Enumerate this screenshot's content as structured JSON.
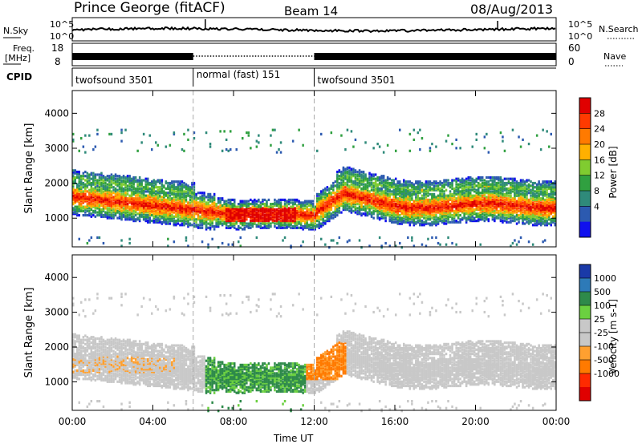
{
  "header": {
    "title": "Prince George (fitACF)",
    "beam": "Beam 14",
    "date": "08/Aug/2013"
  },
  "noise_panel": {
    "left_label": "N.Sky",
    "right_label": "N.Search",
    "left_ticks": [
      "10^5",
      "10^0"
    ],
    "right_ticks": [
      "10^5",
      "10^0"
    ]
  },
  "freq_panel": {
    "left_label_1": "Freq.",
    "left_label_2": "[MHz]",
    "left_ticks": [
      "18",
      "8"
    ],
    "right_label": "Nave",
    "right_ticks": [
      "60",
      "0"
    ]
  },
  "cpid_panel": {
    "label": "CPID",
    "segments": [
      {
        "label": "twofsound 3501",
        "start_hour": 0,
        "end_hour": 6
      },
      {
        "label": "normal (fast) 151",
        "start_hour": 6,
        "end_hour": 12
      },
      {
        "label": "twofsound 3501",
        "start_hour": 12,
        "end_hour": 24
      }
    ]
  },
  "chart_data": [
    {
      "type": "heatmap",
      "quantity": "power",
      "ylabel": "Slant Range [km]",
      "y_ticks": [
        "1000",
        "2000",
        "3000",
        "4000"
      ],
      "ylim": [
        180,
        4650
      ],
      "x_ticks": [
        "00:00",
        "04:00",
        "08:00",
        "12:00",
        "16:00",
        "20:00",
        "00:00"
      ],
      "xlim_hours": [
        0,
        24
      ],
      "mode_change_hours": [
        6,
        12
      ],
      "colorbar": {
        "label": "Power [dB]",
        "ticks": [
          "28",
          "24",
          "20",
          "16",
          "12",
          "8",
          "4"
        ],
        "colors": [
          "#e00000",
          "#ff3a00",
          "#ff7a00",
          "#ffb000",
          "#80cc30",
          "#30a040",
          "#2f8a7a",
          "#2c5ab0",
          "#1010ee"
        ]
      }
    },
    {
      "type": "heatmap",
      "quantity": "velocity",
      "ylabel": "Slant Range [km]",
      "y_ticks": [
        "1000",
        "2000",
        "3000",
        "4000"
      ],
      "ylim": [
        180,
        4650
      ],
      "x_ticks": [
        "00:00",
        "04:00",
        "08:00",
        "12:00",
        "16:00",
        "20:00",
        "00:00"
      ],
      "xlim_hours": [
        0,
        24
      ],
      "xlabel": "Time UT",
      "mode_change_hours": [
        6,
        12
      ],
      "colorbar": {
        "label": "Velocity [m s-1]",
        "ticks": [
          "1000",
          "500",
          "100",
          "25",
          "-25",
          "-100",
          "-500",
          "-1000"
        ],
        "colors": [
          "#1a3aa8",
          "#2d7ab8",
          "#2e8a4a",
          "#6bd040",
          "#c8c8c8",
          "#c8c8c8",
          "#ffa030",
          "#ff7a00",
          "#ff2a00",
          "#e00000"
        ]
      }
    }
  ]
}
